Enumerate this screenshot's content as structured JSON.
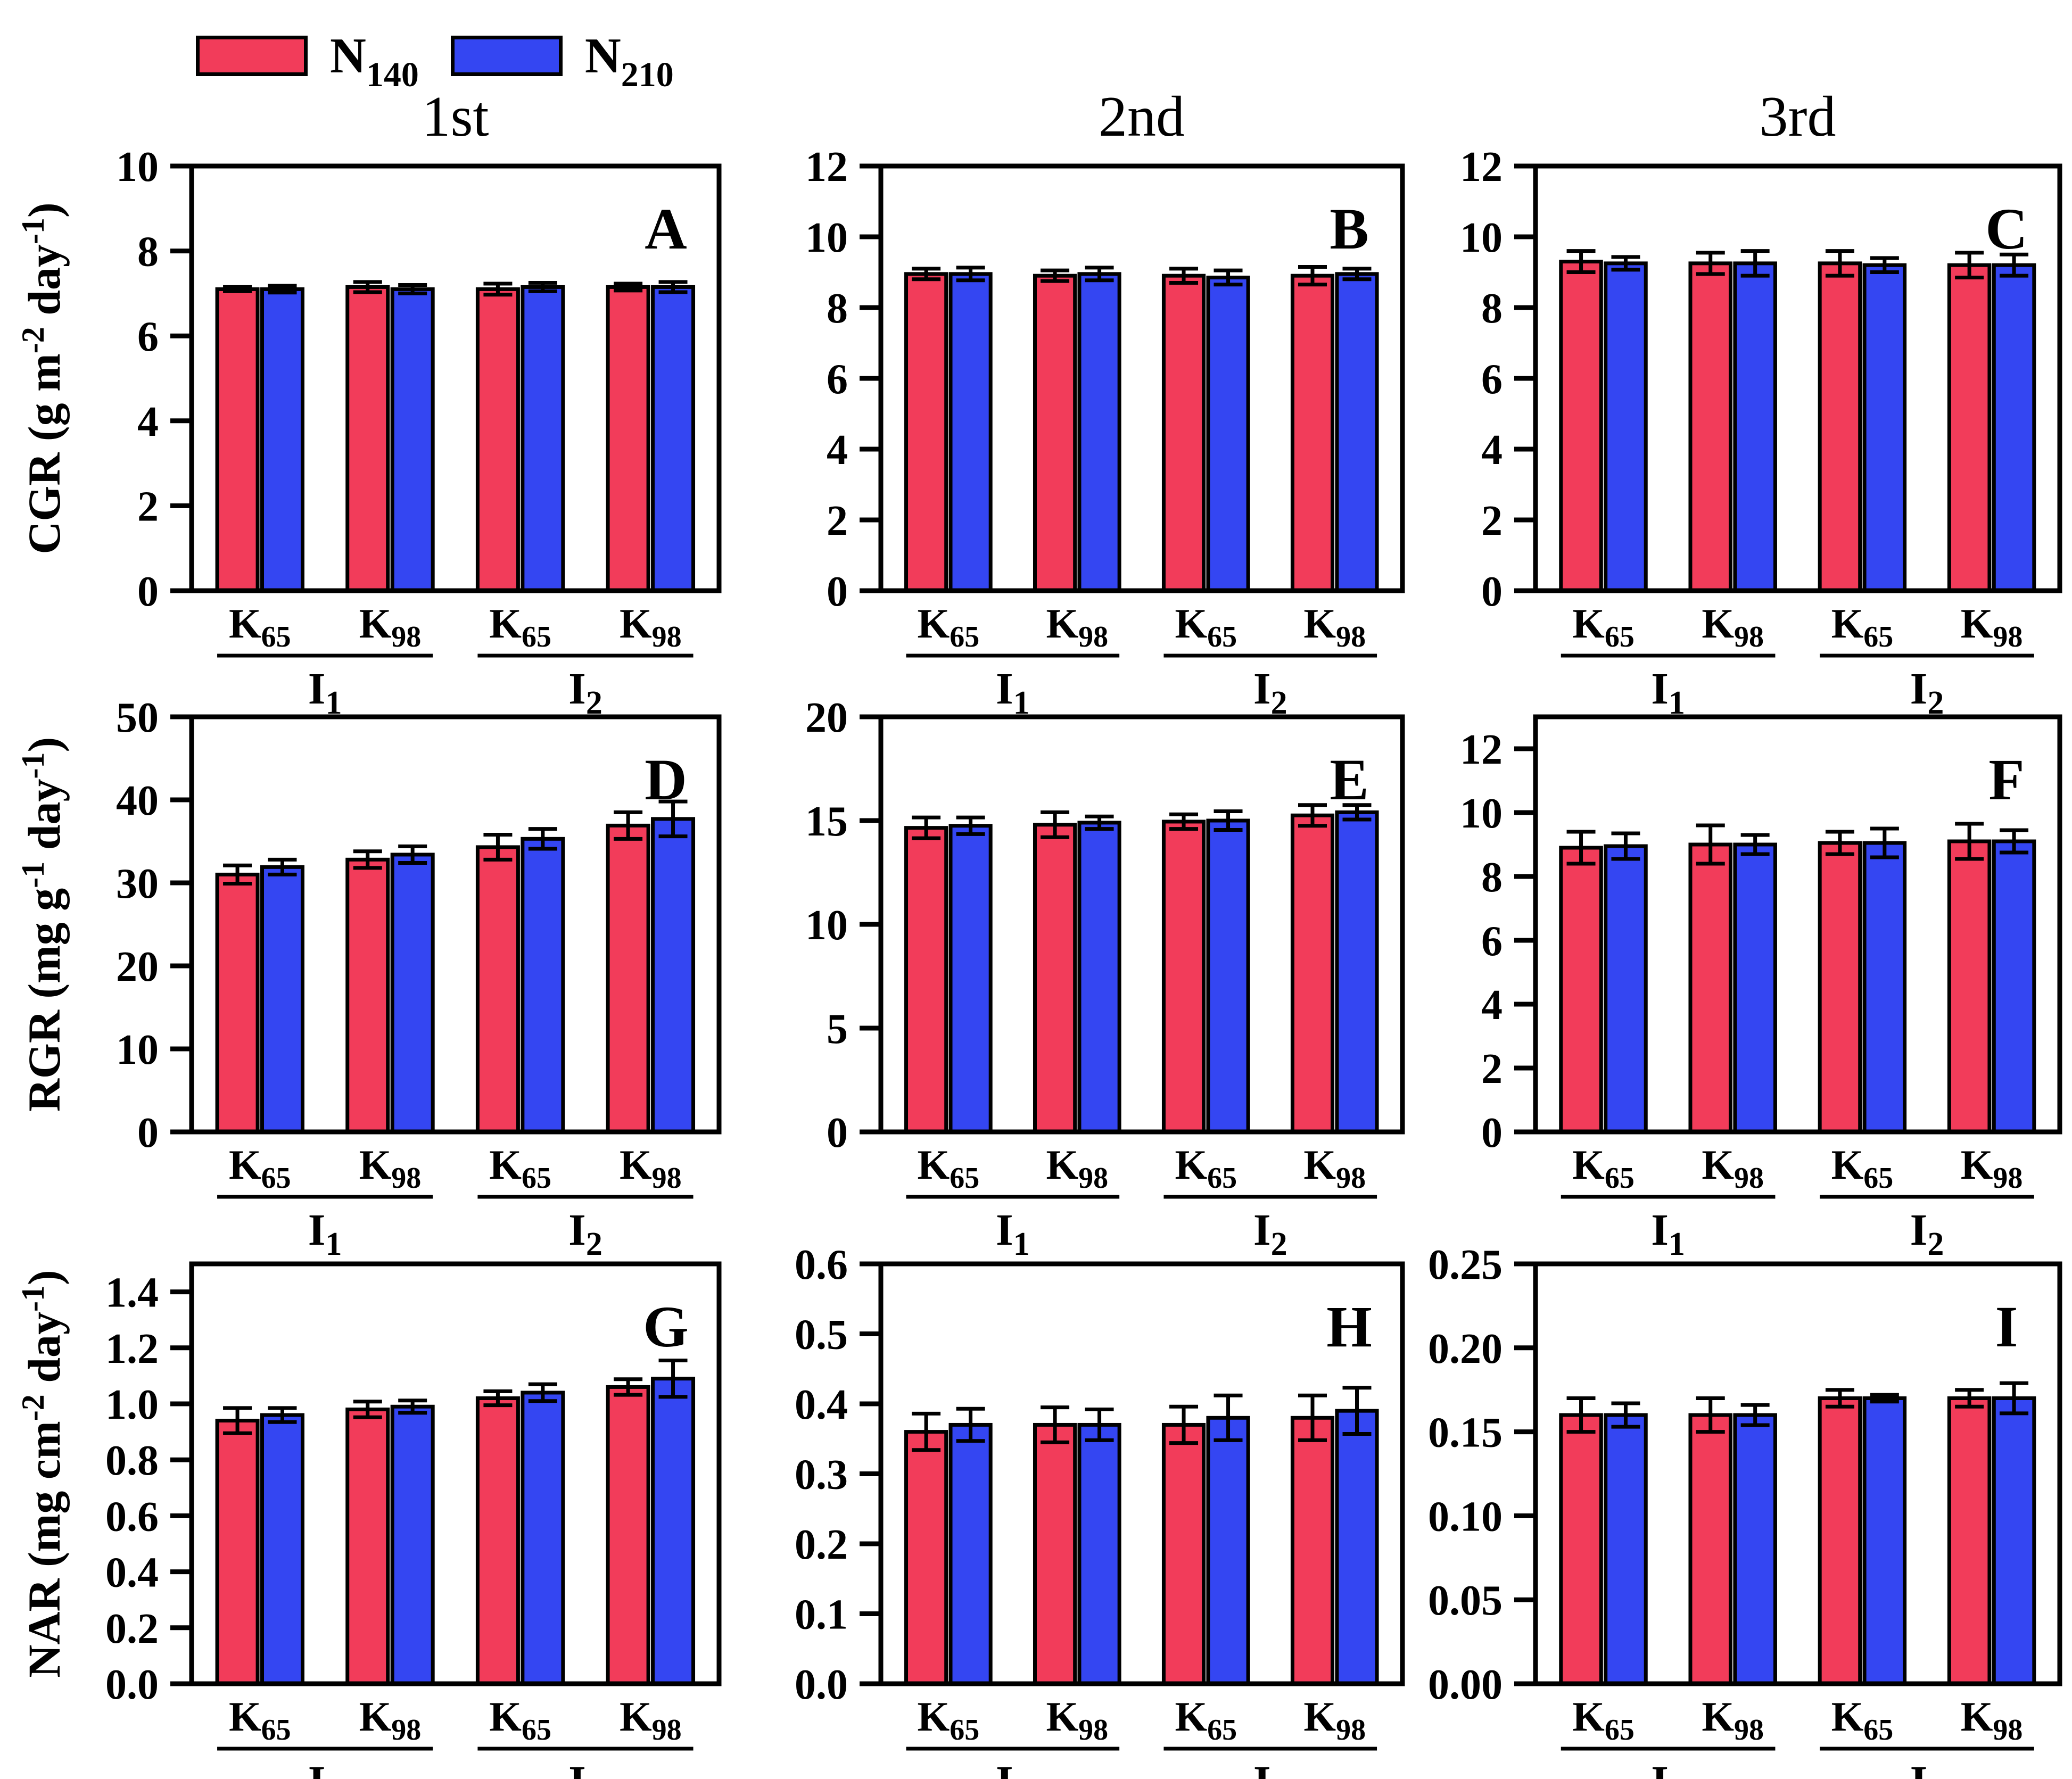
{
  "colors": {
    "background": "#FFFFFF",
    "ink": "#000000",
    "n140": "#F23C5A",
    "n210": "#3446F2"
  },
  "legend": {
    "items": [
      {
        "base": "N",
        "sub": "140",
        "color_key": "n140"
      },
      {
        "base": "N",
        "sub": "210",
        "color_key": "n210"
      }
    ]
  },
  "column_titles": [
    "1st",
    "2nd",
    "3rd"
  ],
  "x_axis": {
    "pairs": [
      {
        "base": "K",
        "sub": "65"
      },
      {
        "base": "K",
        "sub": "98"
      }
    ],
    "groups": [
      {
        "base": "I",
        "sub": "1"
      },
      {
        "base": "I",
        "sub": "2"
      }
    ]
  },
  "chart_data": [
    {
      "panel": "A",
      "type": "bar",
      "row": 0,
      "col": 0,
      "ylabel_runs": [
        {
          "t": "CGR (g m"
        },
        {
          "t": "-2",
          "sup": true
        },
        {
          "t": " day"
        },
        {
          "t": "-1",
          "sup": true
        },
        {
          "t": ")"
        }
      ],
      "ylabel_text": "CGR (g m-2 day-1)",
      "ylim": [
        0,
        10
      ],
      "yticks": [
        {
          "v": 0,
          "label": "0"
        },
        {
          "v": 2,
          "label": "2"
        },
        {
          "v": 4,
          "label": "4"
        },
        {
          "v": 6,
          "label": "6"
        },
        {
          "v": 8,
          "label": "8"
        },
        {
          "v": 10,
          "label": "10"
        }
      ],
      "categories": [
        "I1-K65",
        "I1-K98",
        "I2-K65",
        "I2-K98"
      ],
      "series": [
        {
          "name": "N140",
          "color_key": "n140",
          "values": [
            7.1,
            7.15,
            7.1,
            7.15
          ],
          "errors": [
            0.05,
            0.12,
            0.13,
            0.08
          ]
        },
        {
          "name": "N210",
          "color_key": "n210",
          "values": [
            7.1,
            7.1,
            7.15,
            7.15
          ],
          "errors": [
            0.08,
            0.1,
            0.1,
            0.12
          ]
        }
      ]
    },
    {
      "panel": "B",
      "type": "bar",
      "row": 0,
      "col": 1,
      "ylim": [
        0,
        12
      ],
      "yticks": [
        {
          "v": 0,
          "label": "0"
        },
        {
          "v": 2,
          "label": "2"
        },
        {
          "v": 4,
          "label": "4"
        },
        {
          "v": 6,
          "label": "6"
        },
        {
          "v": 8,
          "label": "8"
        },
        {
          "v": 10,
          "label": "10"
        },
        {
          "v": 12,
          "label": "12"
        }
      ],
      "categories": [
        "I1-K65",
        "I1-K98",
        "I2-K65",
        "I2-K98"
      ],
      "series": [
        {
          "name": "N140",
          "color_key": "n140",
          "values": [
            8.95,
            8.9,
            8.9,
            8.9
          ],
          "errors": [
            0.15,
            0.15,
            0.2,
            0.25
          ]
        },
        {
          "name": "N210",
          "color_key": "n210",
          "values": [
            8.95,
            8.95,
            8.85,
            8.95
          ],
          "errors": [
            0.18,
            0.18,
            0.2,
            0.15
          ]
        }
      ]
    },
    {
      "panel": "C",
      "type": "bar",
      "row": 0,
      "col": 2,
      "ylim": [
        0,
        12
      ],
      "yticks": [
        {
          "v": 0,
          "label": "0"
        },
        {
          "v": 2,
          "label": "2"
        },
        {
          "v": 4,
          "label": "4"
        },
        {
          "v": 6,
          "label": "6"
        },
        {
          "v": 8,
          "label": "8"
        },
        {
          "v": 10,
          "label": "10"
        },
        {
          "v": 12,
          "label": "12"
        }
      ],
      "categories": [
        "I1-K65",
        "I1-K98",
        "I2-K65",
        "I2-K98"
      ],
      "series": [
        {
          "name": "N140",
          "color_key": "n140",
          "values": [
            9.3,
            9.25,
            9.25,
            9.2
          ],
          "errors": [
            0.3,
            0.3,
            0.35,
            0.35
          ]
        },
        {
          "name": "N210",
          "color_key": "n210",
          "values": [
            9.25,
            9.25,
            9.2,
            9.2
          ],
          "errors": [
            0.18,
            0.35,
            0.2,
            0.3
          ]
        }
      ]
    },
    {
      "panel": "D",
      "type": "bar",
      "row": 1,
      "col": 0,
      "ylabel_runs": [
        {
          "t": "RGR (mg g"
        },
        {
          "t": "-1",
          "sup": true
        },
        {
          "t": " day"
        },
        {
          "t": "-1",
          "sup": true
        },
        {
          "t": ")"
        }
      ],
      "ylabel_text": "RGR (mg g-1 day-1)",
      "ylim": [
        0,
        50
      ],
      "yticks": [
        {
          "v": 0,
          "label": "0"
        },
        {
          "v": 10,
          "label": "10"
        },
        {
          "v": 20,
          "label": "20"
        },
        {
          "v": 30,
          "label": "30"
        },
        {
          "v": 40,
          "label": "40"
        },
        {
          "v": 50,
          "label": "50"
        }
      ],
      "categories": [
        "I1-K65",
        "I1-K98",
        "I2-K65",
        "I2-K98"
      ],
      "series": [
        {
          "name": "N140",
          "color_key": "n140",
          "values": [
            31.0,
            32.8,
            34.3,
            36.9
          ],
          "errors": [
            1.1,
            1.0,
            1.5,
            1.6
          ]
        },
        {
          "name": "N210",
          "color_key": "n210",
          "values": [
            31.9,
            33.4,
            35.3,
            37.7
          ],
          "errors": [
            0.9,
            1.0,
            1.2,
            2.1
          ]
        }
      ]
    },
    {
      "panel": "E",
      "type": "bar",
      "row": 1,
      "col": 1,
      "ylim": [
        0,
        20
      ],
      "yticks": [
        {
          "v": 0,
          "label": "0"
        },
        {
          "v": 5,
          "label": "5"
        },
        {
          "v": 10,
          "label": "10"
        },
        {
          "v": 15,
          "label": "15"
        },
        {
          "v": 20,
          "label": "20"
        }
      ],
      "categories": [
        "I1-K65",
        "I1-K98",
        "I2-K65",
        "I2-K98"
      ],
      "series": [
        {
          "name": "N140",
          "color_key": "n140",
          "values": [
            14.65,
            14.8,
            14.95,
            15.25
          ],
          "errors": [
            0.5,
            0.6,
            0.35,
            0.5
          ]
        },
        {
          "name": "N210",
          "color_key": "n210",
          "values": [
            14.75,
            14.9,
            15.0,
            15.4
          ],
          "errors": [
            0.4,
            0.3,
            0.45,
            0.35
          ]
        }
      ]
    },
    {
      "panel": "F",
      "type": "bar",
      "row": 1,
      "col": 2,
      "ylim": [
        0,
        13
      ],
      "yticks": [
        {
          "v": 0,
          "label": "0"
        },
        {
          "v": 2,
          "label": "2"
        },
        {
          "v": 4,
          "label": "4"
        },
        {
          "v": 6,
          "label": "6"
        },
        {
          "v": 8,
          "label": "8"
        },
        {
          "v": 10,
          "label": "10"
        },
        {
          "v": 12,
          "label": "12"
        }
      ],
      "categories": [
        "I1-K65",
        "I1-K98",
        "I2-K65",
        "I2-K98"
      ],
      "series": [
        {
          "name": "N140",
          "color_key": "n140",
          "values": [
            8.9,
            9.0,
            9.05,
            9.1
          ],
          "errors": [
            0.5,
            0.6,
            0.35,
            0.55
          ]
        },
        {
          "name": "N210",
          "color_key": "n210",
          "values": [
            8.95,
            9.0,
            9.05,
            9.1
          ],
          "errors": [
            0.4,
            0.3,
            0.45,
            0.35
          ]
        }
      ]
    },
    {
      "panel": "G",
      "type": "bar",
      "row": 2,
      "col": 0,
      "ylabel_runs": [
        {
          "t": "NAR (mg cm"
        },
        {
          "t": "-2",
          "sup": true
        },
        {
          "t": " day"
        },
        {
          "t": "-1",
          "sup": true
        },
        {
          "t": ")"
        }
      ],
      "ylabel_text": "NAR (mg cm-2 day-1)",
      "ylim": [
        0,
        1.5
      ],
      "yticks": [
        {
          "v": 0,
          "label": "0.0"
        },
        {
          "v": 0.2,
          "label": "0.2"
        },
        {
          "v": 0.4,
          "label": "0.4"
        },
        {
          "v": 0.6,
          "label": "0.6"
        },
        {
          "v": 0.8,
          "label": "0.8"
        },
        {
          "v": 1.0,
          "label": "1.0"
        },
        {
          "v": 1.2,
          "label": "1.2"
        },
        {
          "v": 1.4,
          "label": "1.4"
        }
      ],
      "categories": [
        "I1-K65",
        "I1-K98",
        "I2-K65",
        "I2-K98"
      ],
      "series": [
        {
          "name": "N140",
          "color_key": "n140",
          "values": [
            0.94,
            0.98,
            1.02,
            1.06
          ],
          "errors": [
            0.045,
            0.028,
            0.025,
            0.028
          ]
        },
        {
          "name": "N210",
          "color_key": "n210",
          "values": [
            0.96,
            0.99,
            1.04,
            1.09
          ],
          "errors": [
            0.025,
            0.022,
            0.03,
            0.065
          ]
        }
      ]
    },
    {
      "panel": "H",
      "type": "bar",
      "row": 2,
      "col": 1,
      "ylim": [
        0,
        0.6
      ],
      "yticks": [
        {
          "v": 0,
          "label": "0.0"
        },
        {
          "v": 0.1,
          "label": "0.1"
        },
        {
          "v": 0.2,
          "label": "0.2"
        },
        {
          "v": 0.3,
          "label": "0.3"
        },
        {
          "v": 0.4,
          "label": "0.4"
        },
        {
          "v": 0.5,
          "label": "0.5"
        },
        {
          "v": 0.6,
          "label": "0.6"
        }
      ],
      "categories": [
        "I1-K65",
        "I1-K98",
        "I2-K65",
        "I2-K98"
      ],
      "series": [
        {
          "name": "N140",
          "color_key": "n140",
          "values": [
            0.36,
            0.37,
            0.37,
            0.38
          ],
          "errors": [
            0.026,
            0.025,
            0.026,
            0.032
          ]
        },
        {
          "name": "N210",
          "color_key": "n210",
          "values": [
            0.37,
            0.37,
            0.38,
            0.39
          ],
          "errors": [
            0.023,
            0.022,
            0.032,
            0.033
          ]
        }
      ]
    },
    {
      "panel": "I",
      "type": "bar",
      "row": 2,
      "col": 2,
      "ylim": [
        0,
        0.25
      ],
      "yticks": [
        {
          "v": 0,
          "label": "0.00"
        },
        {
          "v": 0.05,
          "label": "0.05"
        },
        {
          "v": 0.1,
          "label": "0.10"
        },
        {
          "v": 0.15,
          "label": "0.15"
        },
        {
          "v": 0.2,
          "label": "0.20"
        },
        {
          "v": 0.25,
          "label": "0.25"
        }
      ],
      "categories": [
        "I1-K65",
        "I1-K98",
        "I2-K65",
        "I2-K98"
      ],
      "series": [
        {
          "name": "N140",
          "color_key": "n140",
          "values": [
            0.16,
            0.16,
            0.17,
            0.17
          ],
          "errors": [
            0.01,
            0.01,
            0.005,
            0.005
          ]
        },
        {
          "name": "N210",
          "color_key": "n210",
          "values": [
            0.16,
            0.16,
            0.17,
            0.17
          ],
          "errors": [
            0.007,
            0.006,
            0.002,
            0.009
          ]
        }
      ]
    }
  ]
}
